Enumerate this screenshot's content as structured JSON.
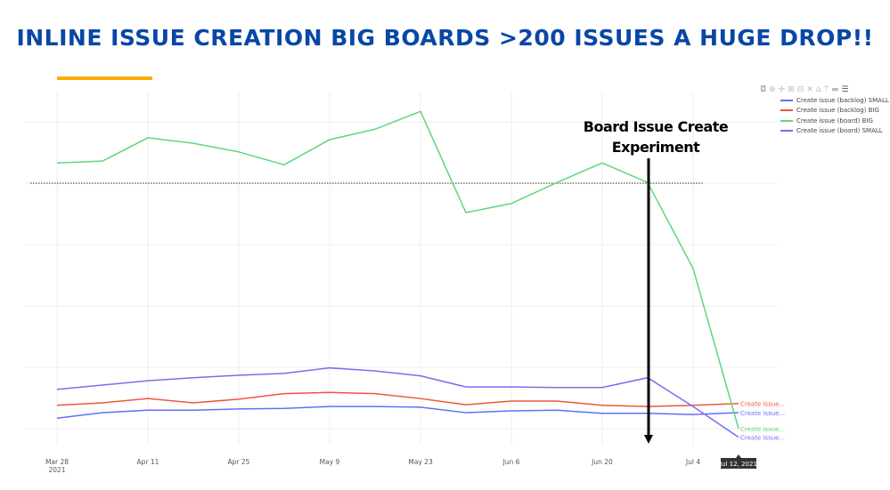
{
  "title": "INLINE ISSUE CREATION BIG BOARDS >200 ISSUES A HUGE DROP!!",
  "colors": {
    "title": "#0747a6",
    "accent_bar": "#ffab00"
  },
  "toolbar_icons": [
    "camera-icon",
    "zoom-icon",
    "pan-icon",
    "zoom-in-icon",
    "zoom-out-icon",
    "autoscale-icon",
    "home-icon",
    "spike-lines-icon",
    "hover-closest-icon",
    "hover-compare-icon"
  ],
  "chart_data": {
    "type": "line",
    "title": "",
    "xlabel": "",
    "ylabel": "",
    "x": [
      "2021-03-28",
      "2021-04-04",
      "2021-04-11",
      "2021-04-18",
      "2021-04-25",
      "2021-05-02",
      "2021-05-09",
      "2021-05-16",
      "2021-05-23",
      "2021-05-30",
      "2021-06-06",
      "2021-06-13",
      "2021-06-20",
      "2021-06-27",
      "2021-07-04",
      "2021-07-11"
    ],
    "x_tick_labels": [
      "Mar 28\n2021",
      "Apr 11",
      "Apr 25",
      "May 9",
      "May 23",
      "Jun 6",
      "Jun 20",
      "Jul 4"
    ],
    "x_tick_indices": [
      0,
      2,
      4,
      6,
      8,
      10,
      12,
      14
    ],
    "y_note": "y tick labels not shown; values on relative scale of gridline units",
    "ylim": [
      -0.35,
      5.4
    ],
    "y_gridlines": [
      0,
      1,
      2,
      3,
      4,
      5
    ],
    "grid": true,
    "legend": "top-right",
    "series": [
      {
        "name": "Create issue (backlog) SMALL",
        "color": "#636efa",
        "end_label": "Create issue...",
        "values": [
          0.17,
          0.26,
          0.3,
          0.3,
          0.32,
          0.33,
          0.36,
          0.36,
          0.35,
          0.26,
          0.29,
          0.3,
          0.25,
          0.25,
          0.23,
          0.26
        ]
      },
      {
        "name": "Create issue (backlog) BIG",
        "color": "#ef553b",
        "end_label": "Create issue...",
        "values": [
          0.38,
          0.42,
          0.49,
          0.42,
          0.48,
          0.57,
          0.59,
          0.57,
          0.49,
          0.39,
          0.45,
          0.45,
          0.38,
          0.36,
          0.38,
          0.41
        ]
      },
      {
        "name": "Create issue (board) BIG",
        "color": "#5ed77a",
        "end_label": "Create issue...",
        "values": [
          4.33,
          4.36,
          4.74,
          4.65,
          4.51,
          4.3,
          4.71,
          4.88,
          5.17,
          3.52,
          3.67,
          4.01,
          4.33,
          4.01,
          2.61,
          0.0
        ]
      },
      {
        "name": "Create issue (board) SMALL",
        "color": "#7b6cf0",
        "end_label": "Create issue...",
        "values": [
          0.64,
          0.71,
          0.78,
          0.83,
          0.87,
          0.9,
          0.99,
          0.94,
          0.86,
          0.68,
          0.68,
          0.67,
          0.67,
          0.83,
          0.36,
          -0.14
        ]
      }
    ],
    "reference_line": {
      "y": 4.0,
      "style": "dotted"
    },
    "annotations": [
      {
        "text_line1": "Board Issue Create",
        "text_line2": "Experiment",
        "arrow_at_index": 13.0
      }
    ],
    "hover_label": "Jul 12, 2021"
  }
}
